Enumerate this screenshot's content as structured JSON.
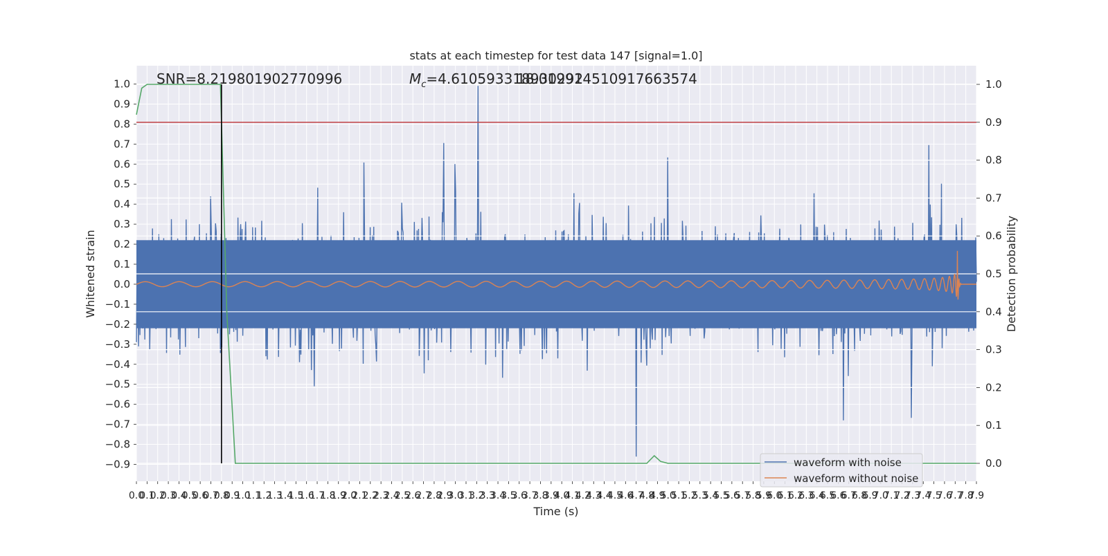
{
  "chart_data": {
    "type": "line",
    "title": "stats at each timestep for test data 147 [signal=1.0]",
    "xlabel": "Time (s)",
    "ylabel_left": "Whitened strain",
    "ylabel_right": "Detection probability",
    "xlim": [
      0.0,
      7.9
    ],
    "ylim_left": [
      -0.98,
      1.08
    ],
    "ylim_right": [
      -0.05,
      1.05
    ],
    "yticks_left": [
      "1.0",
      "0.9",
      "0.8",
      "0.7",
      "0.6",
      "0.5",
      "0.4",
      "0.3",
      "0.2",
      "0.1",
      "0.0",
      "−0.1",
      "−0.2",
      "−0.3",
      "−0.4",
      "−0.5",
      "−0.6",
      "−0.7",
      "−0.8",
      "−0.9"
    ],
    "yticks_right": [
      "1.0",
      "0.9",
      "0.8",
      "0.7",
      "0.6",
      "0.5",
      "0.4",
      "0.3",
      "0.2",
      "0.1",
      "0.0"
    ],
    "annotations": {
      "snr": "SNR=8.219801902770996",
      "mc_symbol": "M",
      "mc_sub": "c",
      "mc_value": "=4.610593318930292",
      "overlap": "18.019914510917663574"
    },
    "legend": {
      "location": "lower-right",
      "entries": [
        "waveform with noise",
        "waveform without noise"
      ]
    },
    "series": [
      {
        "name": "waveform with noise",
        "axis": "left",
        "color": "#4c72b0",
        "description_range": [
          -0.9,
          1.0
        ]
      },
      {
        "name": "waveform without noise",
        "axis": "left",
        "color": "#dd8452",
        "merger_time": 7.72,
        "peak_amplitude": 0.19
      },
      {
        "name": "Detection probability",
        "axis": "right",
        "color": "#55a868",
        "x": [
          0.0,
          0.05,
          0.1,
          0.2,
          0.3,
          0.5,
          0.79,
          0.85,
          0.93,
          4.8,
          4.87,
          4.93,
          5.0,
          7.9
        ],
        "y": [
          0.92,
          0.99,
          1.0,
          1.0,
          1.0,
          1.0,
          1.0,
          0.4,
          0.0,
          0.0,
          0.02,
          0.005,
          0.0,
          0.0
        ]
      }
    ],
    "threshold_line": {
      "axis": "right",
      "value": 0.9,
      "color": "#c44e52"
    },
    "vertical_line": {
      "x": 0.8,
      "color": "#000000"
    },
    "grid": true
  }
}
